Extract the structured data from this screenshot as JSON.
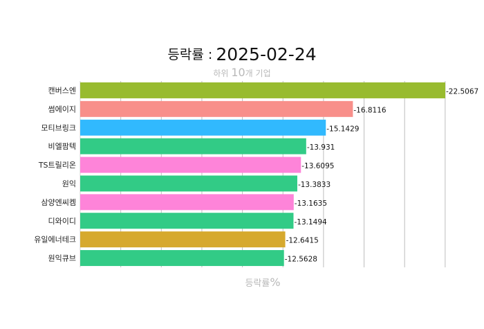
{
  "chart_data": {
    "type": "bar",
    "orientation": "horizontal",
    "title_prefix": "등락률 :",
    "title_date": "2025-02-24",
    "subtitle_prefix": "하위",
    "subtitle_number": "10",
    "subtitle_suffix": "개 기업",
    "xlabel_prefix": "등락률",
    "xlabel_unit": "%",
    "xlim": [
      0,
      -22.5067
    ],
    "grid": true,
    "categories": [
      "캔버스엔",
      "썸에이지",
      "모티브링크",
      "비엘팜텍",
      "TS트릴리온",
      "원익",
      "삼양엔씨켐",
      "디와이디",
      "유일에너테크",
      "원익큐브"
    ],
    "values": [
      -22.5067,
      -16.8116,
      -15.1429,
      -13.931,
      -13.6095,
      -13.3833,
      -13.1635,
      -13.1494,
      -12.6415,
      -12.5628
    ],
    "labels": [
      "-22.5067",
      "-16.8116",
      "-15.1429",
      "-13.931",
      "-13.6095",
      "-13.3833",
      "-13.1635",
      "-13.1494",
      "-12.6415",
      "-12.5628"
    ],
    "colors": [
      "#98bb2f",
      "#f88f8a",
      "#31b9fe",
      "#32cb86",
      "#fe84d9",
      "#32cb86",
      "#fe84d9",
      "#32cb86",
      "#d6a92e",
      "#32cb86"
    ]
  }
}
